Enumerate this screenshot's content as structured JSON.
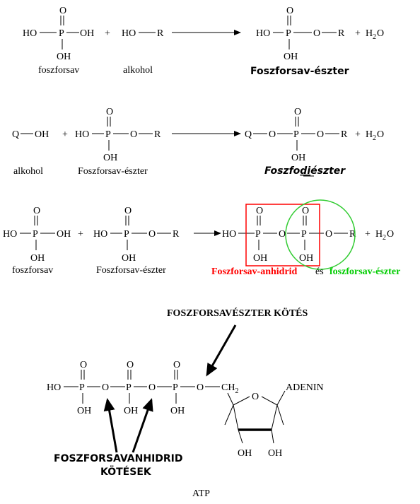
{
  "labels": {
    "foszforsav_1": "foszforsav",
    "alkohol_1": "alkohol",
    "product_1": "Foszforsav-észter",
    "alkohol_2": "alkohol",
    "foszforsav_eszter_2": "Foszforsav-észter",
    "product_2_a": "Foszfo",
    "product_2_b": "di",
    "product_2_c": "észter",
    "foszforsav_3": "foszforsav",
    "foszforsav_eszter_3": "Foszforsav-észter",
    "anhidrid": "Foszforsav-anhidrid",
    "es": "és",
    "eszter_green": "foszforsav-észter",
    "eszter_kotes": "FOSZFORSAVÉSZTER KÖTÉS",
    "anhidrid_kotes_1": "FOSZFORSAVANHIDRID",
    "anhidrid_kotes_2": "KÖTÉSEK",
    "adenin": "ADENIN",
    "atp": "ATP"
  },
  "atoms": {
    "HO": "HO",
    "OH": "OH",
    "P": "P",
    "O": "O",
    "R": "R",
    "Q": "Q",
    "plus": "+",
    "H": "H",
    "sub2": "2",
    "CH": "CH"
  },
  "colors": {
    "anhidrid": "#ff0000",
    "eszter": "#00cc00"
  }
}
